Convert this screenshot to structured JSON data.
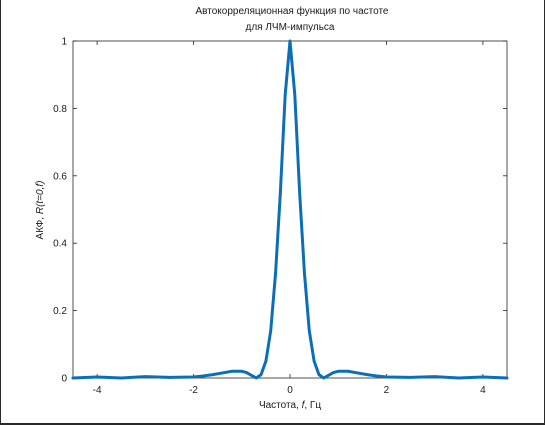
{
  "chart_data": {
    "type": "line",
    "title_lines": [
      "Автокорреляционная функция по частоте",
      "для ЛЧМ-импульса"
    ],
    "xlabel_parts": {
      "a": "Частота, ",
      "b": "f",
      "c": ", Гц"
    },
    "ylabel_parts": {
      "a": "АКФ, ",
      "b": "R(t=0,f)"
    },
    "xlim": [
      -4.5,
      4.5
    ],
    "ylim": [
      0,
      1
    ],
    "xticks": [
      -4,
      -2,
      0,
      2,
      4
    ],
    "xtick_labels": [
      "-4",
      "-2",
      "0",
      "2",
      "4"
    ],
    "yticks": [
      0,
      0.2,
      0.4,
      0.6,
      0.8,
      1
    ],
    "ytick_labels": [
      "0",
      "0.2",
      "0.4",
      "0.6",
      "0.8",
      "1"
    ],
    "grid": false,
    "line_color": "#0b6fb8",
    "series": [
      {
        "x": [
          -4.5,
          -4.0,
          -3.5,
          -3.0,
          -2.5,
          -2.0,
          -1.8,
          -1.6,
          -1.4,
          -1.2,
          -1.0,
          -0.9,
          -0.8,
          -0.7,
          -0.6,
          -0.5,
          -0.4,
          -0.3,
          -0.2,
          -0.1,
          0.0,
          0.1,
          0.2,
          0.3,
          0.4,
          0.5,
          0.6,
          0.7,
          0.8,
          0.9,
          1.0,
          1.2,
          1.4,
          1.6,
          1.8,
          2.0,
          2.5,
          3.0,
          3.5,
          4.0,
          4.5
        ],
        "y": [
          0.0,
          0.003,
          0.0,
          0.004,
          0.002,
          0.003,
          0.006,
          0.01,
          0.015,
          0.02,
          0.02,
          0.016,
          0.008,
          0.0,
          0.01,
          0.05,
          0.14,
          0.31,
          0.55,
          0.84,
          1.0,
          0.84,
          0.55,
          0.31,
          0.14,
          0.05,
          0.01,
          0.0,
          0.008,
          0.016,
          0.02,
          0.02,
          0.015,
          0.01,
          0.006,
          0.003,
          0.002,
          0.004,
          0.0,
          0.003,
          0.0
        ]
      }
    ]
  }
}
